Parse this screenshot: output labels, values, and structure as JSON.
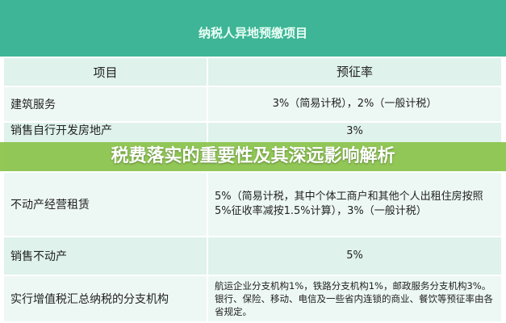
{
  "table": {
    "title": "纳税人异地预缴项目",
    "headers": [
      "项目",
      "预征率"
    ],
    "rows": [
      {
        "item": "建筑服务",
        "rate": "3%（简易计税），2%（一般计税）"
      },
      {
        "item": "销售自行开发房地产",
        "rate": "3%"
      },
      {
        "item": "不动产经营租赁",
        "rate": "5%（简易计税，其中个体工商户和其他个人出租住房按照5%征收率减按1.5%计算），3%（一般计税）"
      },
      {
        "item": "销售不动产",
        "rate": "5%"
      },
      {
        "item": "实行增值税汇总纳税的分支机构",
        "rate": "航运企业分支机构1%，铁路分支机构1%，邮政服务分支机构3%。银行、保险、移动、电信及一些省内连锁的商业、餐饮等预征率由各省规定。"
      }
    ]
  },
  "banner": {
    "text": "税费落实的重要性及其深远影响解析"
  },
  "colors": {
    "header": "#3eb596",
    "banner": "#8bc44a",
    "row_light": "#edf8f4",
    "row_dark": "#dff2ec"
  }
}
